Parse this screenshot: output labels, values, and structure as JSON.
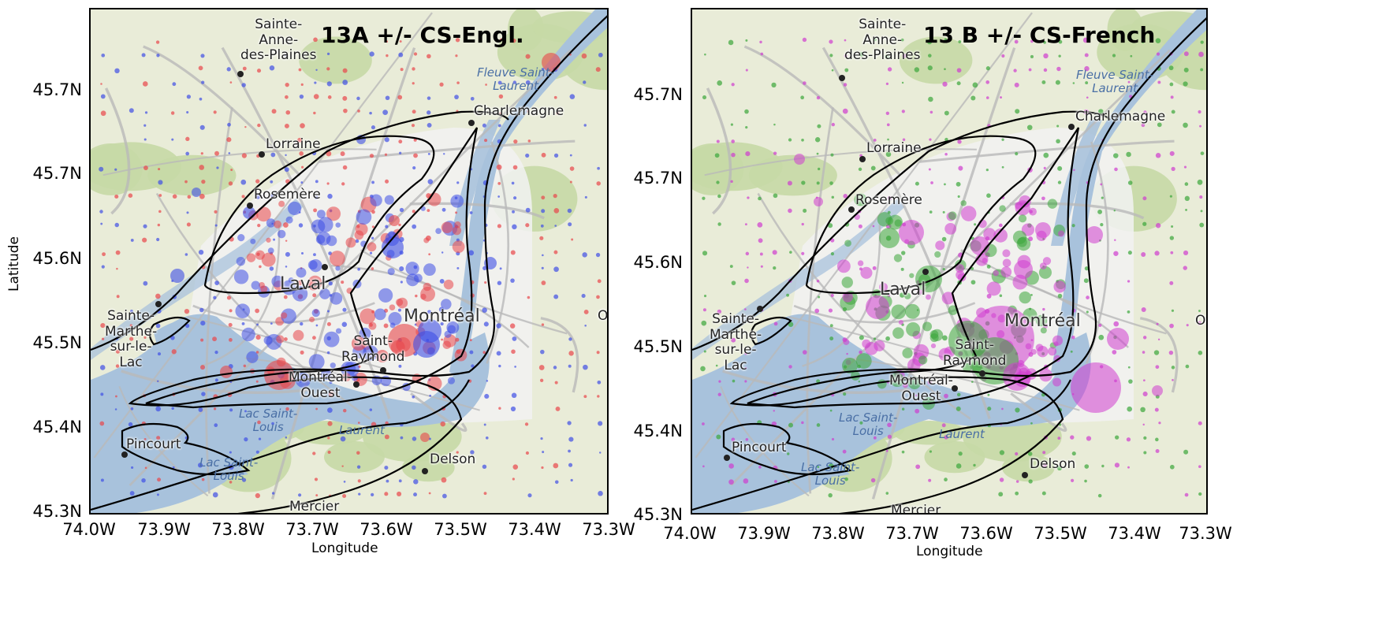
{
  "panels": [
    {
      "id": "left",
      "title": "13A +/- CS-Engl.",
      "xlabel": "Longitude",
      "ylabel": "Latitude",
      "series_colors": {
        "positive": "#e8464a",
        "negative": "#3e4ee6"
      }
    },
    {
      "id": "right",
      "title": "13 B +/- CS-French",
      "xlabel": "Longitude",
      "ylabel": "Latitude",
      "series_colors": {
        "positive": "#cf3ccf",
        "negative": "#3aa63a"
      }
    }
  ],
  "ticks": {
    "y": [
      "45.7N",
      "45.7N",
      "45.6N",
      "45.5N",
      "45.4N",
      "45.3N"
    ],
    "x": [
      "74.0W",
      "73.9W",
      "73.8W",
      "73.7W",
      "73.6W",
      "73.5W",
      "73.4W",
      "73.3W"
    ]
  },
  "places": {
    "sainte_anne": "Sainte-\nAnne-\ndes-Plaines",
    "lorraine": "Lorraine",
    "rosemere": "Rosemère",
    "charlemagne": "Charlemagne",
    "laval": "Laval",
    "montreal": "Montréal",
    "sainte_marthe": "Sainte-\nMarthe-\nsur-le-\nLac",
    "saint_raymond": "Saint-\nRaymond",
    "montreal_ouest": "Montréal-\nOuest",
    "pincourt": "Pincourt",
    "delson": "Delson",
    "mercier": "Mercier",
    "ot": "Ot",
    "lac_st_louis": "Lac Saint-\nLouis",
    "lac_st_laurent": "Lac Saint-\nLouis",
    "laurent": "Laurent",
    "fleuve": "Fleuve Saint-\nLaurent"
  },
  "colors": {
    "land": "#e9ecd8",
    "park": "#c6d9a6",
    "urban": "#f2f2f2",
    "water": "#a8c2dc",
    "roads": "#b9b9b9",
    "contour": "#000000"
  }
}
